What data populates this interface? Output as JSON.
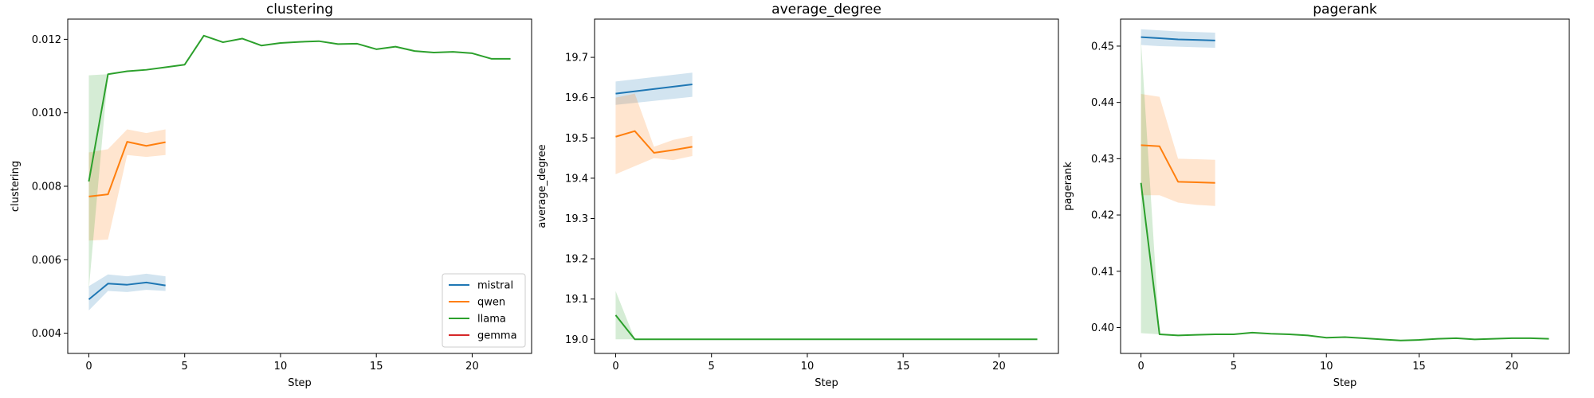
{
  "legend": {
    "placement": "lower-right of first panel",
    "entries": [
      "mistral",
      "qwen",
      "llama",
      "gemma"
    ]
  },
  "colors": {
    "mistral": "#1f77b4",
    "qwen": "#ff7f0e",
    "llama": "#2ca02c",
    "gemma": "#d62728"
  },
  "chart_data": [
    {
      "type": "line",
      "title": "clustering",
      "xlabel": "Step",
      "ylabel": "clustering",
      "xlim": [
        -1.1,
        23.1
      ],
      "ylim": [
        0.00345,
        0.01255
      ],
      "xticks": [
        0,
        5,
        10,
        15,
        20
      ],
      "xtick_labels": [
        "0",
        "5",
        "10",
        "15",
        "20"
      ],
      "yticks": [
        0.004,
        0.006,
        0.008,
        0.01,
        0.012
      ],
      "ytick_labels": [
        "0.004",
        "0.006",
        "0.008",
        "0.010",
        "0.012"
      ],
      "grid": false,
      "series": [
        {
          "name": "mistral",
          "x": [
            0,
            1,
            2,
            3,
            4
          ],
          "y": [
            0.00492,
            0.00535,
            0.00532,
            0.00538,
            0.0053
          ],
          "lower": [
            0.00462,
            0.00515,
            0.00512,
            0.00518,
            0.00515
          ],
          "upper": [
            0.00528,
            0.0056,
            0.00555,
            0.00562,
            0.00555
          ]
        },
        {
          "name": "qwen",
          "x": [
            0,
            1,
            2,
            3,
            4
          ],
          "y": [
            0.00772,
            0.00778,
            0.00921,
            0.0091,
            0.0092
          ],
          "lower": [
            0.00652,
            0.00655,
            0.00885,
            0.0088,
            0.00885
          ],
          "upper": [
            0.00892,
            0.00901,
            0.00955,
            0.00945,
            0.00955
          ]
        },
        {
          "name": "llama",
          "x": [
            0,
            1,
            2,
            3,
            4,
            5,
            6,
            7,
            8,
            9,
            10,
            11,
            12,
            13,
            14,
            15,
            16,
            17,
            18,
            19,
            20,
            21,
            22
          ],
          "y": [
            0.00813,
            0.01105,
            0.01113,
            0.01117,
            0.01124,
            0.01131,
            0.0121,
            0.01192,
            0.01202,
            0.01183,
            0.0119,
            0.01193,
            0.01195,
            0.01187,
            0.01188,
            0.01173,
            0.0118,
            0.01168,
            0.01164,
            0.01166,
            0.01162,
            0.01147,
            0.01147
          ],
          "lower": [
            0.0052,
            0.01105,
            0.01113,
            0.01117,
            0.01124,
            0.01131,
            0.0121,
            0.01192,
            0.01202,
            0.01183,
            0.0119,
            0.01193,
            0.01195,
            0.01187,
            0.01188,
            0.01173,
            0.0118,
            0.01168,
            0.01164,
            0.01166,
            0.01162,
            0.01147,
            0.01147
          ],
          "upper": [
            0.01102,
            0.01105,
            0.01113,
            0.01117,
            0.01124,
            0.01131,
            0.0121,
            0.01192,
            0.01202,
            0.01183,
            0.0119,
            0.01193,
            0.01195,
            0.01187,
            0.01188,
            0.01173,
            0.0118,
            0.01168,
            0.01164,
            0.01166,
            0.01162,
            0.01147,
            0.01147
          ]
        },
        {
          "name": "gemma",
          "x": [],
          "y": [],
          "lower": [],
          "upper": []
        }
      ]
    },
    {
      "type": "line",
      "title": "average_degree",
      "xlabel": "Step",
      "ylabel": "average_degree",
      "xlim": [
        -1.1,
        23.1
      ],
      "ylim": [
        18.965,
        19.795
      ],
      "xticks": [
        0,
        5,
        10,
        15,
        20
      ],
      "xtick_labels": [
        "0",
        "5",
        "10",
        "15",
        "20"
      ],
      "yticks": [
        19.0,
        19.1,
        19.2,
        19.3,
        19.4,
        19.5,
        19.6,
        19.7
      ],
      "ytick_labels": [
        "19.0",
        "19.1",
        "19.2",
        "19.3",
        "19.4",
        "19.5",
        "19.6",
        "19.7"
      ],
      "grid": false,
      "series": [
        {
          "name": "mistral",
          "x": [
            0,
            4
          ],
          "y": [
            19.61,
            19.633
          ],
          "lower": [
            19.582,
            19.602
          ],
          "upper": [
            19.64,
            19.662
          ]
        },
        {
          "name": "qwen",
          "x": [
            0,
            1,
            2,
            3,
            4
          ],
          "y": [
            19.503,
            19.517,
            19.463,
            19.47,
            19.478
          ],
          "lower": [
            19.41,
            19.43,
            19.45,
            19.445,
            19.455
          ],
          "upper": [
            19.6,
            19.61,
            19.478,
            19.495,
            19.505
          ]
        },
        {
          "name": "llama",
          "x": [
            0,
            1,
            2,
            3,
            4,
            5,
            6,
            7,
            8,
            9,
            10,
            11,
            12,
            13,
            14,
            15,
            16,
            17,
            18,
            19,
            20,
            21,
            22
          ],
          "y": [
            19.06,
            19.0,
            19.0,
            19.0,
            19.0,
            19.0,
            19.0,
            19.0,
            19.0,
            19.0,
            19.0,
            19.0,
            19.0,
            19.0,
            19.0,
            19.0,
            19.0,
            19.0,
            19.0,
            19.0,
            19.0,
            19.0,
            19.0
          ],
          "lower": [
            19.0,
            19.0,
            19.0,
            19.0,
            19.0,
            19.0,
            19.0,
            19.0,
            19.0,
            19.0,
            19.0,
            19.0,
            19.0,
            19.0,
            19.0,
            19.0,
            19.0,
            19.0,
            19.0,
            19.0,
            19.0,
            19.0,
            19.0
          ],
          "upper": [
            19.12,
            19.0,
            19.0,
            19.0,
            19.0,
            19.0,
            19.0,
            19.0,
            19.0,
            19.0,
            19.0,
            19.0,
            19.0,
            19.0,
            19.0,
            19.0,
            19.0,
            19.0,
            19.0,
            19.0,
            19.0,
            19.0,
            19.0
          ]
        },
        {
          "name": "gemma",
          "x": [],
          "y": [],
          "lower": [],
          "upper": []
        }
      ]
    },
    {
      "type": "line",
      "title": "pagerank",
      "xlabel": "Step",
      "ylabel": "pagerank",
      "xlim": [
        -1.1,
        23.1
      ],
      "ylim": [
        0.3954,
        0.4548
      ],
      "xticks": [
        0,
        5,
        10,
        15,
        20
      ],
      "xtick_labels": [
        "0",
        "5",
        "10",
        "15",
        "20"
      ],
      "yticks": [
        0.4,
        0.41,
        0.42,
        0.43,
        0.44,
        0.45
      ],
      "ytick_labels": [
        "0.40",
        "0.41",
        "0.42",
        "0.43",
        "0.44",
        "0.45"
      ],
      "grid": false,
      "series": [
        {
          "name": "mistral",
          "x": [
            0,
            1,
            2,
            3,
            4
          ],
          "y": [
            0.4516,
            0.4514,
            0.4512,
            0.4511,
            0.451
          ],
          "lower": [
            0.4502,
            0.45,
            0.4499,
            0.4498,
            0.4497
          ],
          "upper": [
            0.453,
            0.4528,
            0.4526,
            0.4525,
            0.4524
          ]
        },
        {
          "name": "qwen",
          "x": [
            0,
            1,
            2,
            3,
            4
          ],
          "y": [
            0.4324,
            0.4322,
            0.4259,
            0.4258,
            0.4257
          ],
          "lower": [
            0.4235,
            0.4235,
            0.4222,
            0.4218,
            0.4216
          ],
          "upper": [
            0.4415,
            0.441,
            0.43,
            0.4299,
            0.4298
          ]
        },
        {
          "name": "llama",
          "x": [
            0,
            1,
            2,
            3,
            4,
            5,
            6,
            7,
            8,
            9,
            10,
            11,
            12,
            13,
            14,
            15,
            16,
            17,
            18,
            19,
            20,
            21,
            22
          ],
          "y": [
            0.4257,
            0.3988,
            0.3986,
            0.3987,
            0.3988,
            0.3988,
            0.3991,
            0.3989,
            0.3988,
            0.3986,
            0.3982,
            0.3983,
            0.3981,
            0.3979,
            0.3977,
            0.3978,
            0.398,
            0.3981,
            0.3979,
            0.398,
            0.3981,
            0.3981,
            0.398
          ],
          "lower": [
            0.399,
            0.3988,
            0.3986,
            0.3987,
            0.3988,
            0.3988,
            0.3991,
            0.3989,
            0.3988,
            0.3986,
            0.3982,
            0.3983,
            0.3981,
            0.3979,
            0.3977,
            0.3978,
            0.398,
            0.3981,
            0.3979,
            0.398,
            0.3981,
            0.3981,
            0.398
          ],
          "upper": [
            0.451,
            0.3988,
            0.3986,
            0.3987,
            0.3988,
            0.3988,
            0.3991,
            0.3989,
            0.3988,
            0.3986,
            0.3982,
            0.3983,
            0.3981,
            0.3979,
            0.3977,
            0.3978,
            0.398,
            0.3981,
            0.3979,
            0.398,
            0.3981,
            0.3981,
            0.398
          ]
        },
        {
          "name": "gemma",
          "x": [],
          "y": [],
          "lower": [],
          "upper": []
        }
      ]
    }
  ]
}
